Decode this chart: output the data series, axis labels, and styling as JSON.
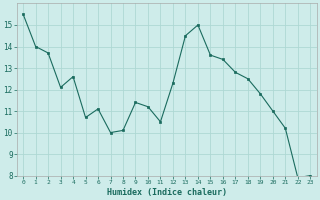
{
  "x": [
    0,
    1,
    2,
    3,
    4,
    5,
    6,
    7,
    8,
    9,
    10,
    11,
    12,
    13,
    14,
    15,
    16,
    17,
    18,
    19,
    20,
    21,
    22,
    23
  ],
  "y": [
    15.5,
    14.0,
    13.7,
    12.1,
    12.6,
    10.7,
    11.1,
    10.0,
    10.1,
    11.4,
    11.2,
    10.5,
    12.3,
    14.5,
    15.0,
    13.6,
    13.4,
    12.8,
    12.5,
    11.8,
    11.0,
    10.2,
    7.9,
    8.0
  ],
  "xlabel": "Humidex (Indice chaleur)",
  "ylim": [
    8,
    16
  ],
  "xlim": [
    -0.5,
    23.5
  ],
  "yticks": [
    8,
    9,
    10,
    11,
    12,
    13,
    14,
    15
  ],
  "xticks": [
    0,
    1,
    2,
    3,
    4,
    5,
    6,
    7,
    8,
    9,
    10,
    11,
    12,
    13,
    14,
    15,
    16,
    17,
    18,
    19,
    20,
    21,
    22,
    23
  ],
  "line_color": "#1a6b5e",
  "marker_color": "#1a6b5e",
  "bg_color": "#ceecea",
  "grid_color": "#aed8d4",
  "axis_label_color": "#1a6b5e",
  "tick_label_color": "#1a6b5e",
  "axis_color": "#aaaaaa"
}
